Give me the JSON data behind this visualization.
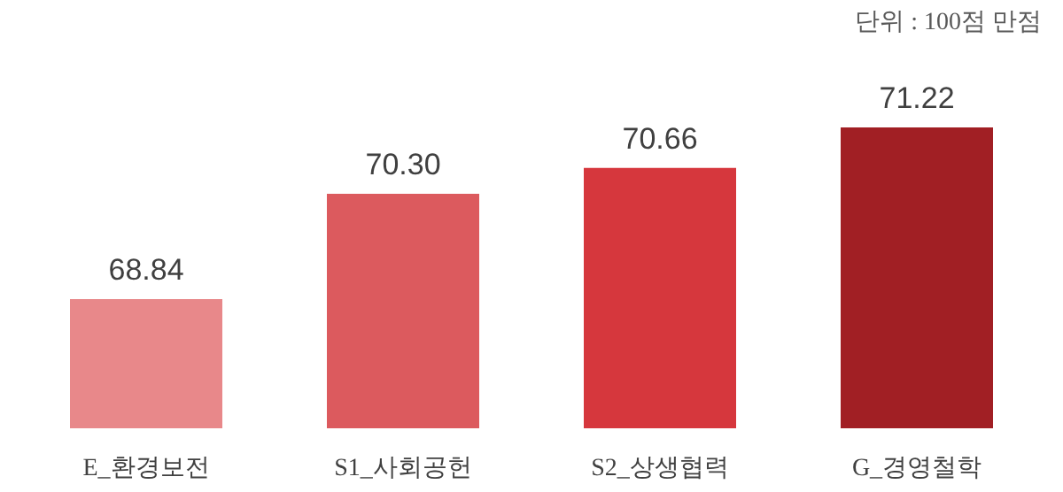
{
  "chart_data": {
    "type": "bar",
    "categories": [
      "E_환경보전",
      "S1_사회공헌",
      "S2_상생협력",
      "G_경영철학"
    ],
    "values": [
      68.84,
      70.3,
      70.66,
      71.22
    ],
    "value_labels": [
      "68.84",
      "70.30",
      "70.66",
      "71.22"
    ],
    "colors": [
      "#e8888a",
      "#dc5a5e",
      "#d6373d",
      "#a11f24"
    ],
    "ylim": [
      67.05,
      71.22
    ],
    "tick_labels": "x",
    "annotations": [
      "단위 : 100점 만점"
    ]
  }
}
